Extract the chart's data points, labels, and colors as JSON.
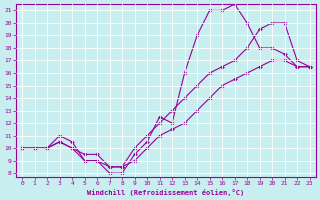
{
  "xlabel": "Windchill (Refroidissement éolien,°C)",
  "ylabel": "",
  "background_color": "#c8eef0",
  "line_color": "#990099",
  "grid_color": "#ffffff",
  "xlim": [
    0,
    23
  ],
  "ylim": [
    8,
    21
  ],
  "xticks": [
    0,
    1,
    2,
    3,
    4,
    5,
    6,
    7,
    8,
    9,
    10,
    11,
    12,
    13,
    14,
    15,
    16,
    17,
    18,
    19,
    20,
    21,
    22,
    23
  ],
  "yticks": [
    8,
    9,
    10,
    11,
    12,
    13,
    14,
    15,
    16,
    17,
    18,
    19,
    20,
    21
  ],
  "line1_x": [
    0,
    1,
    2,
    3,
    4,
    5,
    6,
    7,
    8,
    9,
    10,
    11,
    12,
    13,
    14,
    15,
    16,
    17,
    18,
    19,
    20,
    21,
    22,
    23
  ],
  "line1_y": [
    10,
    10,
    10,
    10.5,
    10,
    9,
    9,
    8,
    8,
    9.5,
    10.5,
    12.5,
    12,
    16,
    19,
    21,
    21,
    21.5,
    20,
    18,
    18,
    17.5,
    16.5,
    16.5
  ],
  "line2_x": [
    0,
    1,
    2,
    3,
    4,
    5,
    6,
    7,
    8,
    9,
    10,
    11,
    12,
    13,
    14,
    15,
    16,
    17,
    18,
    19,
    20,
    21,
    22,
    23
  ],
  "line2_y": [
    10,
    10,
    10,
    11,
    10.5,
    9,
    9,
    8.5,
    8.5,
    10,
    11,
    12,
    13,
    14,
    15,
    16,
    16.5,
    17,
    18,
    19.5,
    20,
    20,
    17,
    16.5
  ],
  "line3_x": [
    0,
    1,
    2,
    3,
    4,
    5,
    6,
    7,
    8,
    9,
    10,
    11,
    12,
    13,
    14,
    15,
    16,
    17,
    18,
    19,
    20,
    21,
    22,
    23
  ],
  "line3_y": [
    10,
    10,
    10,
    10.5,
    10,
    9.5,
    9.5,
    8.5,
    8.5,
    9,
    10,
    11,
    11.5,
    12,
    13,
    14,
    15,
    15.5,
    16,
    16.5,
    17,
    17,
    16.5,
    16.5
  ]
}
